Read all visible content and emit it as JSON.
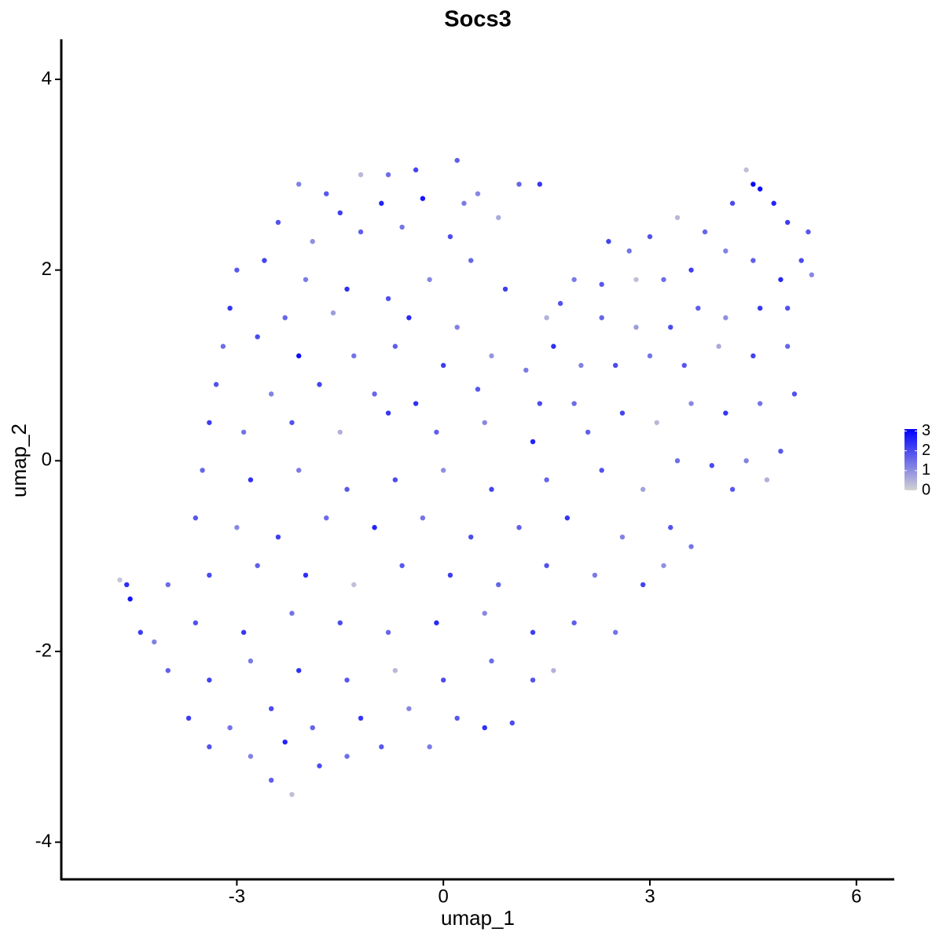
{
  "chart_data": {
    "type": "scatter",
    "title": "Socs3",
    "x_label": "umap_1",
    "y_label": "umap_2",
    "x": [
      -2.1,
      -1.7,
      -1.2,
      -0.8,
      -0.4,
      0.2,
      0.5,
      1.1,
      -1.5,
      -0.9,
      -0.3,
      0.3,
      -2.4,
      -1.9,
      -1.2,
      -0.6,
      0.1,
      0.8,
      1.4,
      -3.0,
      -2.6,
      -2.0,
      -1.4,
      -0.8,
      -0.2,
      0.4,
      0.9,
      1.5,
      -3.1,
      -2.3,
      -1.6,
      -0.5,
      0.2,
      -3.2,
      -2.7,
      -2.1,
      -1.3,
      -0.7,
      0.0,
      0.7,
      1.2,
      -3.3,
      -2.5,
      -1.8,
      -1.0,
      -0.4,
      0.5,
      1.4,
      -3.4,
      -2.9,
      -2.2,
      -1.5,
      -0.8,
      -0.1,
      0.6,
      1.3,
      1.9,
      -3.5,
      -2.8,
      -2.1,
      -1.4,
      -0.7,
      0.0,
      0.7,
      1.5,
      2.3,
      2.9,
      -3.6,
      -3.0,
      -2.4,
      -1.7,
      -1.0,
      -0.3,
      0.4,
      1.1,
      1.8,
      2.6,
      3.3,
      3.6,
      -4.0,
      -3.4,
      -2.7,
      -2.0,
      -1.3,
      -0.6,
      0.1,
      0.8,
      1.5,
      2.2,
      2.9,
      3.2,
      -4.2,
      -3.6,
      -2.9,
      -2.2,
      -1.5,
      -0.8,
      -0.1,
      0.6,
      1.3,
      1.9,
      2.5,
      -4.0,
      -3.4,
      -2.8,
      -2.1,
      -1.4,
      -0.7,
      0.0,
      0.7,
      1.3,
      1.6,
      -3.7,
      -3.1,
      -2.5,
      -1.9,
      -1.2,
      -0.5,
      0.2,
      0.6,
      1.0,
      -3.4,
      -2.8,
      -2.3,
      -1.8,
      -1.4,
      -0.9,
      -0.2,
      -2.2,
      -2.5,
      -4.7,
      -4.6,
      -4.55,
      -4.4,
      4.4,
      4.5,
      4.6,
      4.8,
      5.0,
      5.3,
      4.2,
      3.8,
      3.4,
      3.0,
      2.7,
      2.4,
      5.2,
      4.9,
      4.5,
      4.1,
      3.6,
      3.2,
      2.8,
      2.3,
      1.9,
      5.35,
      5.0,
      4.6,
      4.1,
      3.7,
      3.3,
      2.8,
      2.3,
      1.7,
      5.0,
      4.5,
      4.0,
      3.5,
      3.0,
      2.5,
      2.0,
      1.6,
      5.1,
      4.6,
      4.1,
      3.6,
      3.1,
      2.6,
      2.1,
      4.9,
      4.4,
      3.9,
      3.4,
      4.7,
      4.2
    ],
    "values": [
      2.9,
      2.8,
      3.0,
      3.0,
      3.05,
      3.15,
      2.8,
      2.9,
      2.6,
      2.7,
      2.75,
      2.7,
      2.5,
      2.3,
      2.4,
      2.45,
      2.35,
      2.55,
      2.9,
      2.0,
      2.1,
      1.9,
      1.8,
      1.7,
      1.9,
      2.1,
      1.8,
      1.5,
      1.6,
      1.5,
      1.55,
      1.5,
      1.4,
      1.2,
      1.3,
      1.1,
      1.1,
      1.2,
      1.0,
      1.1,
      0.95,
      0.8,
      0.7,
      0.8,
      0.7,
      0.6,
      0.75,
      0.6,
      0.4,
      0.3,
      0.4,
      0.3,
      0.5,
      0.3,
      0.4,
      0.2,
      0.6,
      -0.1,
      -0.2,
      -0.1,
      -0.3,
      -0.2,
      -0.1,
      -0.3,
      -0.2,
      -0.1,
      -0.3,
      -0.6,
      -0.7,
      -0.8,
      -0.6,
      -0.7,
      -0.6,
      -0.8,
      -0.7,
      -0.6,
      -0.8,
      -0.7,
      -0.9,
      -1.3,
      -1.2,
      -1.1,
      -1.2,
      -1.3,
      -1.1,
      -1.2,
      -1.3,
      -1.1,
      -1.2,
      -1.3,
      -1.1,
      -1.9,
      -1.7,
      -1.8,
      -1.6,
      -1.7,
      -1.8,
      -1.7,
      -1.6,
      -1.8,
      -1.7,
      -1.8,
      -2.2,
      -2.3,
      -2.1,
      -2.2,
      -2.3,
      -2.2,
      -2.3,
      -2.1,
      -2.3,
      -2.2,
      -2.7,
      -2.8,
      -2.6,
      -2.8,
      -2.7,
      -2.6,
      -2.7,
      -2.8,
      -2.75,
      -3.0,
      -3.1,
      -2.95,
      -3.2,
      -3.1,
      -3.0,
      -3.0,
      -3.5,
      -3.35,
      -1.25,
      -1.3,
      -1.45,
      -1.8,
      3.05,
      2.9,
      2.85,
      2.7,
      2.5,
      2.4,
      2.7,
      2.4,
      2.55,
      2.35,
      2.2,
      2.3,
      2.1,
      1.9,
      2.1,
      2.2,
      2.0,
      1.9,
      1.9,
      1.85,
      1.9,
      1.95,
      1.6,
      1.6,
      1.5,
      1.6,
      1.4,
      1.4,
      1.5,
      1.65,
      1.2,
      1.1,
      1.2,
      1.0,
      1.1,
      1.0,
      1.0,
      1.2,
      0.7,
      0.6,
      0.5,
      0.6,
      0.4,
      0.5,
      0.3,
      0.1,
      0.0,
      -0.05,
      0.0,
      -0.2,
      -0.3
    ],
    "color_values": [
      1.2,
      1.8,
      0.4,
      1.5,
      2.1,
      1.7,
      1.1,
      1.6,
      2.2,
      2.6,
      2.8,
      1.3,
      1.9,
      1.0,
      1.7,
      1.4,
      2.0,
      0.6,
      2.3,
      1.8,
      2.1,
      1.3,
      2.4,
      1.9,
      1.1,
      1.6,
      2.2,
      0.5,
      2.3,
      1.6,
      0.8,
      2.5,
      1.2,
      1.5,
      2.0,
      2.9,
      1.4,
      1.7,
      2.2,
      0.9,
      1.3,
      1.9,
      1.2,
      2.1,
      1.6,
      2.4,
      1.8,
      2.0,
      2.2,
      1.4,
      1.9,
      0.5,
      2.3,
      1.7,
      1.1,
      2.6,
      1.5,
      1.6,
      2.4,
      1.3,
      1.8,
      2.0,
      1.0,
      2.1,
      1.6,
      1.9,
      0.7,
      1.8,
      1.1,
      2.2,
      1.5,
      2.6,
      1.4,
      2.0,
      1.7,
      2.3,
      1.2,
      1.9,
      1.4,
      1.5,
      2.0,
      1.7,
      2.4,
      0.3,
      1.8,
      2.2,
      1.6,
      1.9,
      1.3,
      2.1,
      1.0,
      1.2,
      1.9,
      2.3,
      1.4,
      2.0,
      1.6,
      2.5,
      1.1,
      2.2,
      1.7,
      1.4,
      1.7,
      2.1,
      1.3,
      2.4,
      1.8,
      0.4,
      2.0,
      1.5,
      1.9,
      0.5,
      2.2,
      1.4,
      2.0,
      1.6,
      2.3,
      1.1,
      1.8,
      2.4,
      2.0,
      1.9,
      1.2,
      2.6,
      2.0,
      1.5,
      1.8,
      1.3,
      0.3,
      1.7,
      0.2,
      2.4,
      2.8,
      2.2,
      0.3,
      3.0,
      2.9,
      2.6,
      2.2,
      1.8,
      2.0,
      1.6,
      0.4,
      1.9,
      1.4,
      2.1,
      2.0,
      2.5,
      1.7,
      1.2,
      2.2,
      1.5,
      0.3,
      1.8,
      1.3,
      1.1,
      1.9,
      2.3,
      1.0,
      1.7,
      2.0,
      0.8,
      1.6,
      1.9,
      1.6,
      2.1,
      0.6,
      1.8,
      1.4,
      2.0,
      1.2,
      2.4,
      1.9,
      1.4,
      2.3,
      1.1,
      0.4,
      2.1,
      1.7,
      1.8,
      1.2,
      2.0,
      1.5,
      0.5,
      1.8
    ],
    "color_low": "#d3d3d3",
    "color_high": "#0000ff",
    "colorlim": [
      0,
      3.1
    ],
    "colorticks": [
      0,
      1,
      2,
      3
    ],
    "xlim": [
      -5.55,
      6.55
    ],
    "ylim": [
      -4.39,
      4.42
    ],
    "xticks": [
      -3,
      0,
      3,
      6
    ],
    "yticks": [
      -4,
      -2,
      0,
      2,
      4
    ],
    "grid": false
  }
}
